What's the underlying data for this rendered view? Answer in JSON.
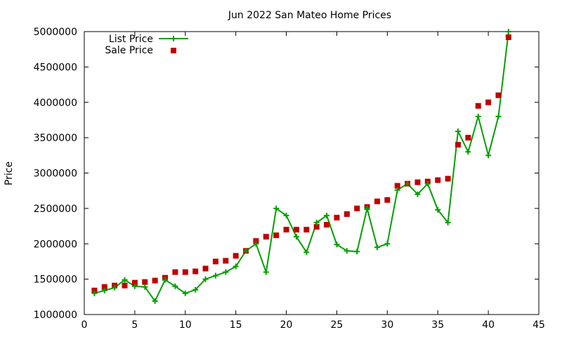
{
  "chart_data": {
    "type": "line",
    "title": "Jun 2022 San Mateo Home Prices",
    "xlabel": "",
    "ylabel": "Price",
    "xlim": [
      0,
      45
    ],
    "ylim": [
      1000000,
      5000000
    ],
    "xticks": [
      0,
      5,
      10,
      15,
      20,
      25,
      30,
      35,
      40,
      45
    ],
    "yticks": [
      1000000,
      1500000,
      2000000,
      2500000,
      3000000,
      3500000,
      4000000,
      4500000,
      5000000
    ],
    "grid": false,
    "legend_position": "top-left",
    "series": [
      {
        "name": "List Price",
        "style": "lines+points",
        "marker": "plus",
        "color": "#00a000",
        "x": [
          1,
          2,
          3,
          4,
          5,
          6,
          7,
          8,
          9,
          10,
          11,
          12,
          13,
          14,
          15,
          16,
          17,
          18,
          19,
          20,
          21,
          22,
          23,
          24,
          25,
          26,
          27,
          28,
          29,
          30,
          31,
          32,
          33,
          34,
          35,
          36,
          37,
          38,
          39,
          40,
          41,
          42
        ],
        "y": [
          1300000,
          1340000,
          1380000,
          1490000,
          1400000,
          1390000,
          1190000,
          1490000,
          1400000,
          1300000,
          1350000,
          1500000,
          1550000,
          1600000,
          1680000,
          1900000,
          2000000,
          1600000,
          2500000,
          2400000,
          2100000,
          1880000,
          2300000,
          2400000,
          1990000,
          1900000,
          1890000,
          2500000,
          1950000,
          2000000,
          2760000,
          2850000,
          2700000,
          2850000,
          2480000,
          2300000,
          3590000,
          3300000,
          3800000,
          3250000,
          3800000,
          5000000
        ]
      },
      {
        "name": "Sale Price",
        "style": "points",
        "marker": "square",
        "color": "#c00000",
        "x": [
          1,
          2,
          3,
          4,
          5,
          6,
          7,
          8,
          9,
          10,
          11,
          12,
          13,
          14,
          15,
          16,
          17,
          18,
          19,
          20,
          21,
          22,
          23,
          24,
          25,
          26,
          27,
          28,
          29,
          30,
          31,
          32,
          33,
          34,
          35,
          36,
          37,
          38,
          39,
          40,
          41,
          42
        ],
        "y": [
          1340000,
          1390000,
          1410000,
          1410000,
          1450000,
          1460000,
          1480000,
          1520000,
          1600000,
          1600000,
          1610000,
          1650000,
          1750000,
          1760000,
          1830000,
          1900000,
          2040000,
          2100000,
          2120000,
          2200000,
          2200000,
          2200000,
          2240000,
          2270000,
          2370000,
          2420000,
          2500000,
          2520000,
          2600000,
          2620000,
          2820000,
          2850000,
          2870000,
          2880000,
          2900000,
          2920000,
          3400000,
          3500000,
          3950000,
          4000000,
          4100000,
          4920000
        ]
      }
    ]
  }
}
